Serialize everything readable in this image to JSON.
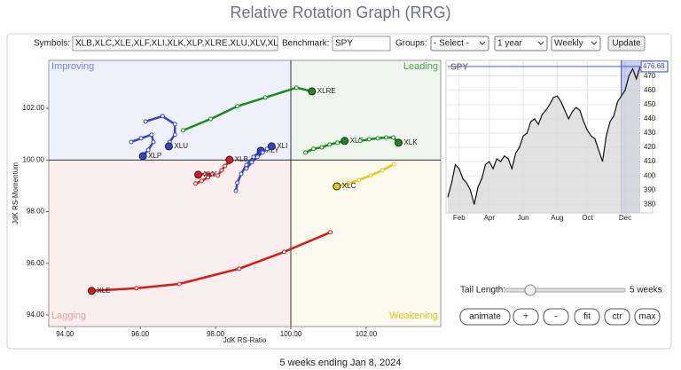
{
  "header": {
    "title": "Relative Rotation Graph (RRG)"
  },
  "controls": {
    "symbols_label": "Symbols:",
    "symbols": "XLB,XLC,XLE,XLF,XLI,XLK,XLP,XLRE,XLU,XLV,XL",
    "benchmark_label": "Benchmark:",
    "benchmark": "SPY",
    "groups_label": "Groups:",
    "groups": "- Select -",
    "period": "1 year",
    "frequency": "Weekly",
    "update": "Update",
    "tail_label": "Tail Length:",
    "tail_value": "5 weeks",
    "buttons": [
      "animate",
      "+",
      "-",
      "fit",
      "ctr",
      "max"
    ]
  },
  "chart_data": [
    {
      "type": "rrg",
      "x_label": "JdK RS-Ratio",
      "y_label": "JdK RS-Momentum",
      "xlim": [
        93.57,
        103.98
      ],
      "ylim": [
        93.55,
        103.86
      ],
      "center": [
        100,
        100
      ],
      "xticks": [
        {
          "value": 94,
          "label": "94.00"
        },
        {
          "value": 96,
          "label": "96.00"
        },
        {
          "value": 98,
          "label": "98.00"
        },
        {
          "value": 100,
          "label": "100.00"
        },
        {
          "value": 102,
          "label": "102.00"
        }
      ],
      "yticks": [
        {
          "value": 94,
          "label": "94.00"
        },
        {
          "value": 96,
          "label": "96.00"
        },
        {
          "value": 98,
          "label": "98.00"
        },
        {
          "value": 100,
          "label": "100.00"
        },
        {
          "value": 102,
          "label": "102.00"
        }
      ],
      "quadrants": [
        {
          "name": "Improving",
          "color": "#7b86d8",
          "background": "#eef0fb"
        },
        {
          "name": "Leading",
          "color": "#4aa84a",
          "background": "#eef6ee"
        },
        {
          "name": "Lagging",
          "color": "#e8a0a0",
          "background": "#fbeeee"
        },
        {
          "name": "Weakening",
          "color": "#e6c619",
          "background": "#fbfaec"
        }
      ],
      "series": [
        {
          "name": "XLE",
          "color": "#d41c1c",
          "x": [
            101.05,
            99.82,
            98.63,
            97.04,
            95.9,
            94.71
          ],
          "y": [
            97.2,
            96.44,
            95.79,
            95.2,
            95.03,
            94.93
          ]
        },
        {
          "name": "XLRE",
          "color": "#1a8a1a",
          "x": [
            97.14,
            97.87,
            98.58,
            99.32,
            100.15,
            100.56
          ],
          "y": [
            101.15,
            101.59,
            102.08,
            102.42,
            102.8,
            102.66
          ]
        },
        {
          "name": "XLU",
          "color": "#3344cc",
          "x": [
            96.14,
            96.59,
            96.92,
            96.92,
            96.78,
            96.76
          ],
          "y": [
            101.49,
            101.7,
            101.39,
            100.98,
            100.7,
            100.53
          ]
        },
        {
          "name": "XLP",
          "color": "#3344cc",
          "x": [
            95.76,
            96.02,
            96.3,
            96.35,
            96.21,
            96.07
          ],
          "y": [
            100.7,
            100.84,
            100.98,
            100.7,
            100.39,
            100.15
          ]
        },
        {
          "name": "XLV",
          "color": "#d41c1c",
          "x": [
            97.47,
            97.63,
            97.8,
            97.92,
            97.73,
            97.54
          ],
          "y": [
            99.09,
            99.19,
            99.33,
            99.46,
            99.46,
            99.43
          ]
        },
        {
          "name": "XLB",
          "color": "#d41c1c",
          "x": [
            98.06,
            98.16,
            98.25,
            98.35,
            98.42,
            98.37
          ],
          "y": [
            99.4,
            99.6,
            99.77,
            99.91,
            99.98,
            100.01
          ]
        },
        {
          "name": "XLY",
          "color": "#3344cc",
          "x": [
            98.54,
            98.58,
            98.68,
            98.82,
            99.01,
            99.2
          ],
          "y": [
            98.81,
            99.12,
            99.46,
            99.81,
            100.12,
            100.36
          ]
        },
        {
          "name": "XLI",
          "color": "#3344cc",
          "x": [
            98.82,
            98.96,
            99.11,
            99.25,
            99.37,
            99.49
          ],
          "y": [
            99.67,
            99.91,
            100.12,
            100.29,
            100.43,
            100.53
          ]
        },
        {
          "name": "XLF",
          "color": "#1a8a1a",
          "x": [
            100.39,
            100.6,
            100.82,
            101.03,
            101.24,
            101.43
          ],
          "y": [
            100.29,
            100.43,
            100.49,
            100.6,
            100.67,
            100.74
          ]
        },
        {
          "name": "XLK",
          "color": "#1a8a1a",
          "x": [
            101.84,
            102.08,
            102.31,
            102.53,
            102.72,
            102.86
          ],
          "y": [
            100.74,
            100.8,
            100.84,
            100.87,
            100.87,
            100.67
          ]
        },
        {
          "name": "XLC",
          "color": "#e6c619",
          "x": [
            102.74,
            102.43,
            102.12,
            101.81,
            101.53,
            101.22
          ],
          "y": [
            99.84,
            99.6,
            99.4,
            99.22,
            99.09,
            98.98
          ]
        }
      ]
    },
    {
      "type": "line",
      "title": "SPY",
      "color": "#111111",
      "fill": "#d9d9d9",
      "highlight_color": "#3344cc",
      "highlight_weeks": 5,
      "grid": true,
      "categories": [
        null,
        null,
        null,
        "Feb",
        null,
        null,
        null,
        null,
        null,
        null,
        null,
        "Apr",
        null,
        null,
        null,
        null,
        null,
        null,
        null,
        null,
        "Jun",
        null,
        null,
        null,
        null,
        null,
        null,
        null,
        null,
        "Aug",
        null,
        null,
        null,
        null,
        null,
        null,
        null,
        "Oct",
        null,
        null,
        null,
        null,
        null,
        null,
        null,
        null,
        null,
        "Dec",
        null,
        null,
        null,
        null
      ],
      "values": [
        385,
        395,
        408,
        405,
        398,
        395,
        390,
        380,
        392,
        398,
        408,
        410,
        405,
        412,
        410,
        414,
        412,
        405,
        416,
        420,
        428,
        430,
        438,
        440,
        436,
        443,
        446,
        450,
        455,
        456,
        452,
        446,
        440,
        445,
        448,
        446,
        438,
        432,
        428,
        426,
        418,
        410,
        428,
        438,
        442,
        452,
        456,
        460,
        470,
        475,
        468,
        476.68
      ],
      "ylim": [
        374,
        481
      ],
      "yticks": [
        380,
        390,
        400,
        410,
        420,
        430,
        440,
        450,
        460,
        470
      ]
    }
  ],
  "footer": "5 weeks ending Jan 8, 2024"
}
